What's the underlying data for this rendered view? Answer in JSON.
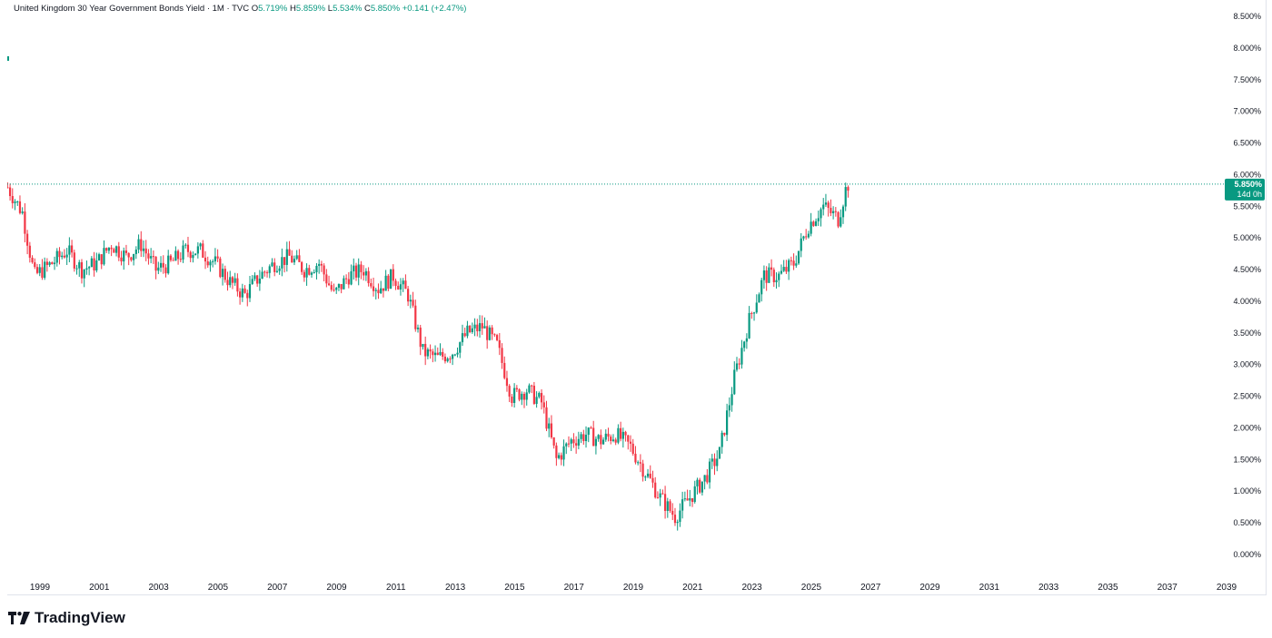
{
  "legend": {
    "symbol": "United Kingdom 30 Year Government Bonds Yield · 1M · TVC",
    "open_label": "O",
    "open": "5.719%",
    "high_label": "H",
    "high": "5.859%",
    "low_label": "L",
    "low": "5.534%",
    "close_label": "C",
    "close": "5.850%",
    "change": "+0.141 (+2.47%)"
  },
  "last_price": {
    "value": "5.850%",
    "countdown": "14d 0h",
    "color": "#089981"
  },
  "brand": {
    "name": "TradingView"
  },
  "colors": {
    "up": "#089981",
    "down": "#f23645",
    "grid_line": "#e0e3eb",
    "text": "#131722"
  },
  "chart_data": {
    "type": "candlestick",
    "interval": "1M",
    "y_axis": {
      "ticks": [
        "8.500%",
        "8.000%",
        "7.500%",
        "7.000%",
        "6.500%",
        "6.000%",
        "5.500%",
        "5.000%",
        "4.500%",
        "4.000%",
        "3.500%",
        "3.000%",
        "2.500%",
        "2.000%",
        "1.500%",
        "1.000%",
        "0.500%",
        "0.000%"
      ],
      "range": [
        0,
        8.5
      ],
      "side": "right"
    },
    "x_axis": {
      "ticks": [
        "1999",
        "2001",
        "2003",
        "2005",
        "2007",
        "2009",
        "2011",
        "2013",
        "2015",
        "2017",
        "2019",
        "2021",
        "2023",
        "2025",
        "2027",
        "2029",
        "2031",
        "2033",
        "2035",
        "2037",
        "2039"
      ],
      "range": [
        1998.0,
        2039.0
      ]
    },
    "grid": false,
    "series": [
      {
        "values_xy": [
          [
            1998.0,
            5.8
          ],
          [
            1998.5,
            5.4
          ],
          [
            1998.9,
            4.4
          ],
          [
            1999.5,
            4.6
          ],
          [
            2000.0,
            4.8
          ],
          [
            2000.5,
            4.5
          ],
          [
            2001.0,
            4.6
          ],
          [
            2001.5,
            4.9
          ],
          [
            2002.0,
            4.7
          ],
          [
            2002.5,
            4.9
          ],
          [
            2003.0,
            4.5
          ],
          [
            2003.5,
            4.6
          ],
          [
            2004.0,
            4.8
          ],
          [
            2004.5,
            4.8
          ],
          [
            2005.0,
            4.6
          ],
          [
            2005.5,
            4.3
          ],
          [
            2006.0,
            4.1
          ],
          [
            2006.5,
            4.4
          ],
          [
            2007.0,
            4.6
          ],
          [
            2007.5,
            4.7
          ],
          [
            2008.0,
            4.5
          ],
          [
            2008.5,
            4.6
          ],
          [
            2009.0,
            4.1
          ],
          [
            2009.5,
            4.4
          ],
          [
            2010.0,
            4.5
          ],
          [
            2010.5,
            4.2
          ],
          [
            2011.0,
            4.4
          ],
          [
            2011.5,
            4.1
          ],
          [
            2012.0,
            3.2
          ],
          [
            2012.5,
            3.1
          ],
          [
            2013.0,
            3.2
          ],
          [
            2013.5,
            3.5
          ],
          [
            2014.0,
            3.6
          ],
          [
            2014.5,
            3.3
          ],
          [
            2015.0,
            2.5
          ],
          [
            2015.5,
            2.6
          ],
          [
            2016.0,
            2.4
          ],
          [
            2016.5,
            1.5
          ],
          [
            2017.0,
            1.8
          ],
          [
            2017.5,
            1.9
          ],
          [
            2018.0,
            1.8
          ],
          [
            2018.5,
            1.9
          ],
          [
            2019.0,
            1.7
          ],
          [
            2019.5,
            1.3
          ],
          [
            2020.0,
            0.9
          ],
          [
            2020.5,
            0.6
          ],
          [
            2021.0,
            0.9
          ],
          [
            2021.5,
            1.2
          ],
          [
            2022.0,
            1.6
          ],
          [
            2022.5,
            2.8
          ],
          [
            2023.0,
            3.7
          ],
          [
            2023.5,
            4.4
          ],
          [
            2024.0,
            4.4
          ],
          [
            2024.5,
            4.6
          ],
          [
            2025.0,
            5.2
          ],
          [
            2025.5,
            5.5
          ],
          [
            2026.0,
            5.3
          ],
          [
            2026.3,
            5.85
          ]
        ]
      }
    ]
  }
}
